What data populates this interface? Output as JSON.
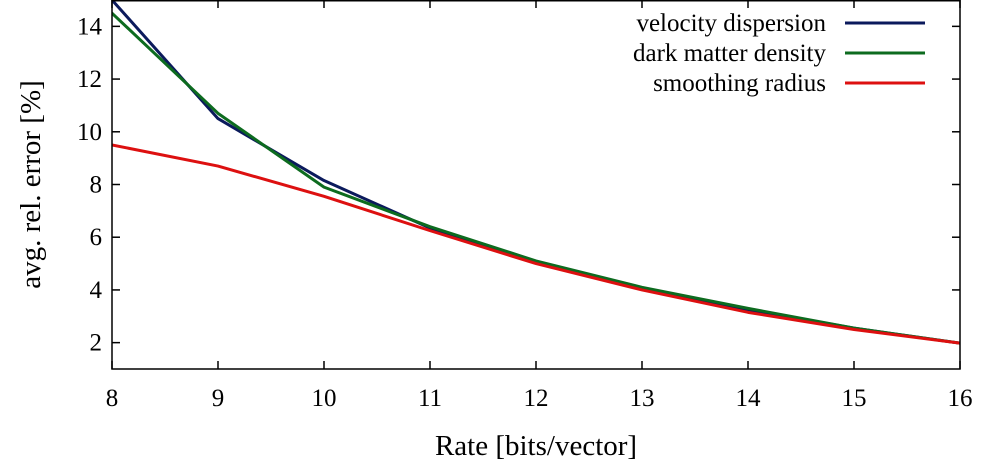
{
  "chart_data": {
    "type": "line",
    "xlabel": "Rate [bits/vector]",
    "ylabel": "avg. rel. error [%]",
    "xlim": [
      8,
      16
    ],
    "ylim": [
      1,
      15
    ],
    "xticks": [
      8,
      9,
      10,
      11,
      12,
      13,
      14,
      15,
      16
    ],
    "yticks": [
      2,
      4,
      6,
      8,
      10,
      12,
      14
    ],
    "grid": false,
    "legend_position": "top-right",
    "x": [
      8,
      9,
      10,
      11,
      12,
      13,
      14,
      15,
      16
    ],
    "series": [
      {
        "name": "velocity dispersion",
        "color": "#0b1a5c",
        "values": [
          15.0,
          10.5,
          8.15,
          6.35,
          5.05,
          4.05,
          3.25,
          2.55,
          1.98
        ]
      },
      {
        "name": "dark matter density",
        "color": "#0d6b1f",
        "values": [
          14.5,
          10.7,
          7.9,
          6.4,
          5.1,
          4.1,
          3.3,
          2.55,
          1.98
        ]
      },
      {
        "name": "smoothing radius",
        "color": "#dd1010",
        "values": [
          9.5,
          8.7,
          7.55,
          6.25,
          5.0,
          4.0,
          3.15,
          2.5,
          1.98
        ]
      }
    ]
  }
}
